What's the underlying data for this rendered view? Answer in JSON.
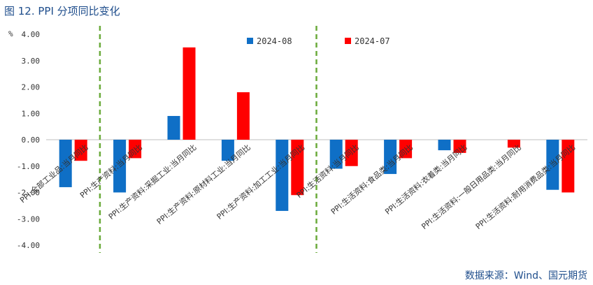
{
  "title": "图 12. PPI 分项同比变化",
  "source": "数据来源：Wind、国元期货",
  "chart_data": {
    "type": "bar",
    "ylabel": "%",
    "ylim": [
      -4,
      4
    ],
    "yticks": [
      "4.00",
      "3.00",
      "2.00",
      "1.00",
      "0.00",
      "-1.00",
      "-2.00",
      "-3.00",
      "-4.00"
    ],
    "categories": [
      "PPI:全部工业品:当月同比",
      "PPI:生产资料:当月同比",
      "PPI:生产资料:采掘工业:当月同比",
      "PPI:生产资料:原材料工业:当月同比",
      "PPI:生产资料:加工工业:当月同比",
      "PPI:生活资料:当月同比",
      "PPI:生活资料:食品类:当月同比",
      "PPI:生活资料:衣着类:当月同比",
      "PPI:生活资料:一般日用品类:当月同比",
      "PPI:生活资料:耐用消费品类:当月同比"
    ],
    "series": [
      {
        "name": "2024-08",
        "color": "#0f6fc6",
        "values": [
          -1.8,
          -2.0,
          0.9,
          -0.8,
          -2.7,
          -1.1,
          -1.3,
          -0.4,
          0.0,
          -1.9
        ]
      },
      {
        "name": "2024-07",
        "color": "#ff0000",
        "values": [
          -0.8,
          -0.7,
          3.5,
          1.8,
          -2.1,
          -1.0,
          -0.7,
          -0.5,
          -0.3,
          -2.0
        ]
      }
    ],
    "dividers_after": [
      0,
      4
    ],
    "divider_color": "#6aaa3a",
    "legend_placement": "top",
    "grid": false
  }
}
